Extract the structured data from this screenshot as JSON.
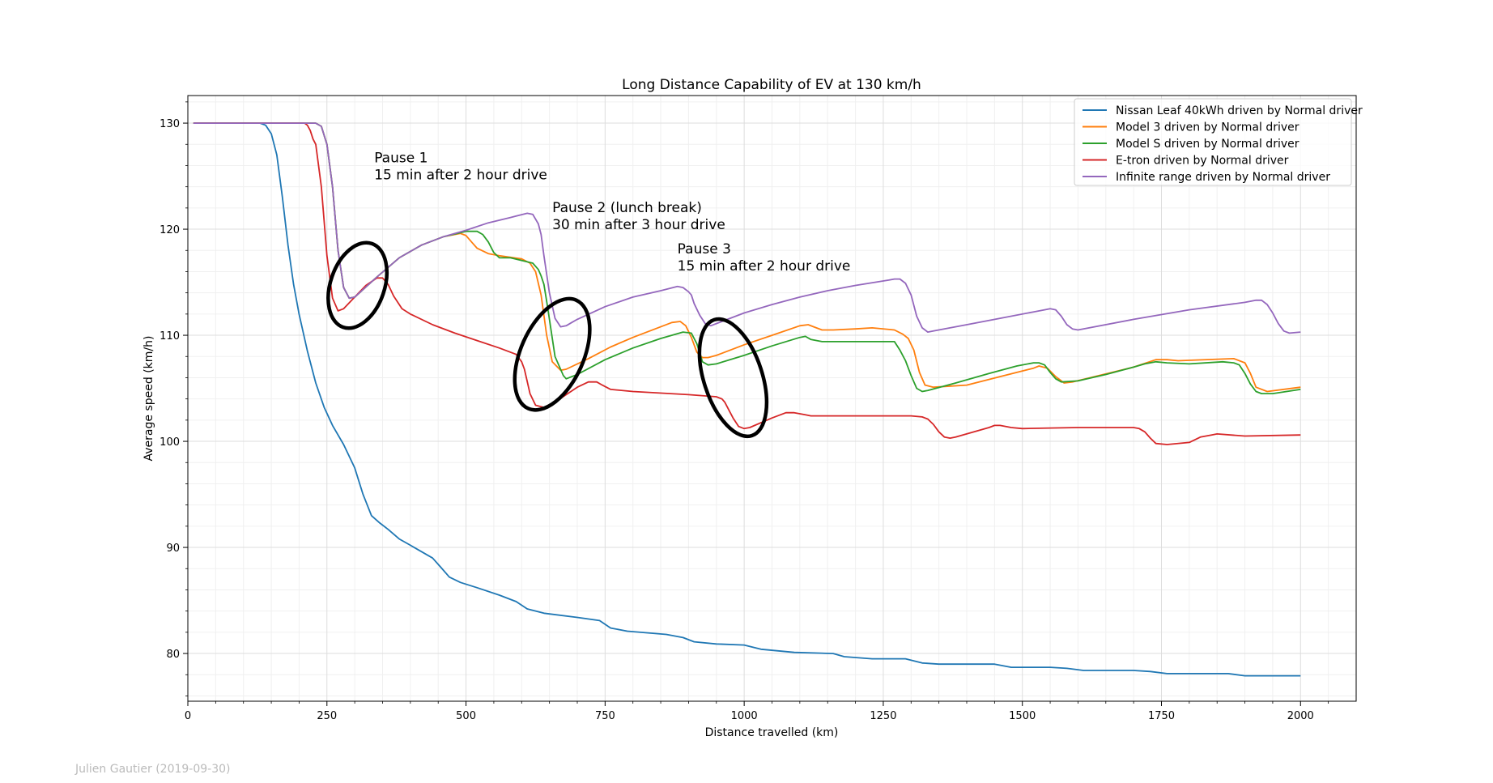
{
  "chart_data": {
    "type": "line",
    "title": "Long Distance Capability of EV at 130 km/h",
    "xlabel": "Distance travelled (km)",
    "ylabel": "Average speed (km/h)",
    "xlim": [
      0,
      2100
    ],
    "ylim": [
      75.5,
      132.6
    ],
    "xticks": [
      0,
      250,
      500,
      750,
      1000,
      1250,
      1500,
      1750,
      2000
    ],
    "yticks": [
      80,
      90,
      100,
      110,
      120,
      130
    ],
    "grid": true,
    "legend_position": "upper right",
    "series": [
      {
        "name": "Nissan Leaf 40kWh driven by Normal driver",
        "color": "#1f77b4",
        "x": [
          10,
          130,
          140,
          150,
          160,
          170,
          180,
          190,
          200,
          215,
          230,
          245,
          260,
          280,
          300,
          315,
          330,
          345,
          360,
          380,
          400,
          420,
          440,
          455,
          470,
          490,
          520,
          560,
          590,
          610,
          640,
          700,
          740,
          760,
          790,
          860,
          890,
          910,
          950,
          1000,
          1030,
          1090,
          1160,
          1180,
          1230,
          1290,
          1320,
          1350,
          1450,
          1480,
          1550,
          1580,
          1610,
          1700,
          1730,
          1760,
          1870,
          1900,
          1930,
          2000
        ],
        "y": [
          130,
          130,
          129.8,
          129,
          127,
          123,
          118.5,
          114.8,
          112,
          108.5,
          105.5,
          103.2,
          101.5,
          99.7,
          97.5,
          95,
          93,
          92.3,
          91.7,
          90.8,
          90.2,
          89.6,
          89,
          88.1,
          87.2,
          86.7,
          86.2,
          85.5,
          84.9,
          84.2,
          83.8,
          83.4,
          83.1,
          82.4,
          82.1,
          81.8,
          81.5,
          81.1,
          80.9,
          80.8,
          80.4,
          80.1,
          80.0,
          79.7,
          79.5,
          79.5,
          79.1,
          79.0,
          79.0,
          78.7,
          78.7,
          78.6,
          78.4,
          78.4,
          78.3,
          78.1,
          78.1,
          77.9,
          77.9,
          77.9
        ]
      },
      {
        "name": "Model 3 driven by Normal driver",
        "color": "#ff7f0e",
        "x": [
          10,
          230,
          240,
          250,
          260,
          270,
          280,
          290,
          300,
          340,
          380,
          420,
          460,
          490,
          500,
          510,
          520,
          540,
          560,
          600,
          615,
          625,
          635,
          645,
          655,
          670,
          680,
          720,
          760,
          800,
          840,
          870,
          885,
          895,
          905,
          915,
          925,
          935,
          950,
          1000,
          1050,
          1100,
          1115,
          1125,
          1140,
          1160,
          1200,
          1230,
          1270,
          1285,
          1295,
          1305,
          1315,
          1325,
          1340,
          1400,
          1460,
          1520,
          1530,
          1545,
          1560,
          1575,
          1590,
          1700,
          1740,
          1760,
          1780,
          1880,
          1900,
          1910,
          1920,
          1940,
          2000
        ],
        "y": [
          130,
          130,
          129.7,
          128,
          124,
          118,
          114.5,
          113.5,
          113.6,
          115.5,
          117.3,
          118.5,
          119.3,
          119.6,
          119.4,
          118.8,
          118.2,
          117.7,
          117.5,
          117.2,
          116.8,
          116,
          113.8,
          110,
          107.5,
          106.7,
          106.8,
          107.8,
          108.9,
          109.8,
          110.6,
          111.2,
          111.3,
          110.9,
          109.8,
          108.4,
          107.9,
          107.9,
          108.1,
          109.1,
          110.0,
          110.9,
          111,
          110.8,
          110.5,
          110.5,
          110.6,
          110.7,
          110.5,
          110.1,
          109.7,
          108.6,
          106.5,
          105.3,
          105.1,
          105.3,
          106.1,
          106.9,
          107.1,
          106.9,
          106.1,
          105.5,
          105.6,
          107,
          107.7,
          107.7,
          107.6,
          107.8,
          107.4,
          106.4,
          105.1,
          104.7,
          105.1
        ]
      },
      {
        "name": "Model S driven by Normal driver",
        "color": "#2ca02c",
        "x": [
          10,
          230,
          240,
          250,
          260,
          270,
          280,
          290,
          300,
          340,
          380,
          420,
          460,
          500,
          520,
          530,
          540,
          550,
          560,
          580,
          620,
          630,
          635,
          640,
          645,
          650,
          660,
          675,
          680,
          700,
          750,
          800,
          850,
          890,
          905,
          915,
          925,
          935,
          950,
          1000,
          1050,
          1100,
          1110,
          1120,
          1140,
          1180,
          1220,
          1250,
          1270,
          1280,
          1290,
          1300,
          1310,
          1320,
          1330,
          1380,
          1440,
          1490,
          1520,
          1530,
          1540,
          1550,
          1560,
          1570,
          1600,
          1650,
          1700,
          1720,
          1740,
          1760,
          1800,
          1860,
          1880,
          1890,
          1900,
          1910,
          1920,
          1930,
          1950,
          2000
        ],
        "y": [
          130,
          130,
          129.7,
          128,
          124,
          118,
          114.5,
          113.5,
          113.6,
          115.5,
          117.3,
          118.5,
          119.3,
          119.8,
          119.8,
          119.5,
          118.8,
          117.8,
          117.3,
          117.3,
          116.8,
          116.2,
          115.6,
          114.8,
          113.2,
          111.5,
          108,
          106.2,
          105.9,
          106.3,
          107.7,
          108.8,
          109.7,
          110.3,
          110.2,
          109.2,
          107.5,
          107.2,
          107.3,
          108.1,
          109.0,
          109.8,
          109.9,
          109.6,
          109.4,
          109.4,
          109.4,
          109.4,
          109.4,
          108.6,
          107.6,
          106.2,
          105.0,
          104.7,
          104.8,
          105.5,
          106.4,
          107.1,
          107.4,
          107.4,
          107.2,
          106.5,
          105.9,
          105.6,
          105.7,
          106.3,
          107.0,
          107.3,
          107.5,
          107.4,
          107.3,
          107.5,
          107.4,
          107.2,
          106.4,
          105.4,
          104.7,
          104.5,
          104.5,
          104.9
        ]
      },
      {
        "name": "E-tron driven by Normal driver",
        "color": "#d62728",
        "x": [
          10,
          210,
          215,
          220,
          225,
          230,
          240,
          250,
          260,
          270,
          280,
          300,
          320,
          340,
          350,
          360,
          370,
          385,
          400,
          440,
          480,
          520,
          560,
          590,
          600,
          605,
          615,
          625,
          640,
          660,
          680,
          700,
          720,
          735,
          745,
          760,
          800,
          900,
          950,
          960,
          965,
          970,
          980,
          990,
          1000,
          1010,
          1050,
          1075,
          1090,
          1100,
          1110,
          1120,
          1150,
          1300,
          1320,
          1330,
          1340,
          1350,
          1360,
          1370,
          1380,
          1440,
          1450,
          1460,
          1480,
          1500,
          1600,
          1690,
          1700,
          1710,
          1720,
          1730,
          1740,
          1760,
          1800,
          1820,
          1840,
          1850,
          1900,
          2000
        ],
        "y": [
          130,
          130,
          129.8,
          129.3,
          128.5,
          128,
          124,
          117.5,
          113.5,
          112.3,
          112.5,
          113.6,
          114.7,
          115.4,
          115.4,
          114.8,
          113.7,
          112.5,
          112,
          111,
          110.2,
          109.5,
          108.8,
          108.2,
          107.5,
          106.8,
          104.5,
          103.4,
          103.2,
          103.7,
          104.4,
          105.1,
          105.6,
          105.6,
          105.3,
          104.9,
          104.7,
          104.4,
          104.2,
          104,
          103.7,
          103.2,
          102.2,
          101.4,
          101.2,
          101.3,
          102.2,
          102.7,
          102.7,
          102.6,
          102.5,
          102.4,
          102.4,
          102.4,
          102.3,
          102.1,
          101.6,
          100.9,
          100.4,
          100.3,
          100.4,
          101.3,
          101.5,
          101.5,
          101.3,
          101.2,
          101.3,
          101.3,
          101.3,
          101.2,
          100.9,
          100.3,
          99.8,
          99.7,
          99.9,
          100.4,
          100.6,
          100.7,
          100.5,
          100.6
        ]
      },
      {
        "name": "Infinite range driven by Normal driver",
        "color": "#9467bd",
        "x": [
          10,
          230,
          240,
          250,
          260,
          270,
          280,
          290,
          300,
          340,
          380,
          420,
          460,
          500,
          540,
          580,
          610,
          620,
          630,
          635,
          640,
          650,
          660,
          670,
          680,
          690,
          700,
          750,
          800,
          850,
          880,
          890,
          900,
          905,
          910,
          920,
          930,
          940,
          950,
          1000,
          1050,
          1100,
          1150,
          1200,
          1260,
          1270,
          1280,
          1290,
          1300,
          1310,
          1320,
          1330,
          1340,
          1400,
          1460,
          1520,
          1540,
          1550,
          1560,
          1570,
          1580,
          1590,
          1600,
          1700,
          1800,
          1900,
          1920,
          1930,
          1940,
          1950,
          1960,
          1970,
          1980,
          2000
        ],
        "y": [
          130,
          130,
          129.7,
          128,
          124,
          118,
          114.5,
          113.5,
          113.6,
          115.5,
          117.3,
          118.5,
          119.3,
          119.9,
          120.6,
          121.1,
          121.5,
          121.4,
          120.5,
          119.5,
          117.5,
          114,
          111.6,
          110.8,
          110.9,
          111.2,
          111.5,
          112.7,
          113.6,
          114.2,
          114.6,
          114.5,
          114.1,
          113.8,
          113.0,
          111.9,
          111.1,
          110.9,
          111.1,
          112.1,
          112.9,
          113.6,
          114.2,
          114.7,
          115.2,
          115.3,
          115.3,
          114.9,
          113.8,
          111.8,
          110.7,
          110.3,
          110.4,
          111.0,
          111.6,
          112.2,
          112.4,
          112.5,
          112.4,
          111.8,
          111.0,
          110.6,
          110.5,
          111.5,
          112.4,
          113.1,
          113.3,
          113.3,
          112.9,
          112.1,
          111.1,
          110.4,
          110.2,
          110.3
        ]
      }
    ],
    "annotations": [
      {
        "lines": [
          "Pause 1",
          "15 min after 2 hour drive"
        ],
        "x": 335,
        "y": 126.3
      },
      {
        "lines": [
          "Pause 2 (lunch break)",
          "30 min after 3 hour drive"
        ],
        "x": 655,
        "y": 121.6
      },
      {
        "lines": [
          "Pause 3",
          "15 min after 2 hour drive"
        ],
        "x": 880,
        "y": 117.7
      }
    ],
    "ellipses": [
      {
        "cx": 305,
        "cy": 114.7,
        "rx": 97,
        "ry": 159,
        "rot": 19
      },
      {
        "cx": 655,
        "cy": 108.2,
        "rx": 113,
        "ry": 213,
        "rot": 24
      },
      {
        "cx": 980,
        "cy": 106,
        "rx": 105,
        "ry": 219,
        "rot": -18
      }
    ]
  },
  "credit": "Julien Gautier (2019-09-30)"
}
